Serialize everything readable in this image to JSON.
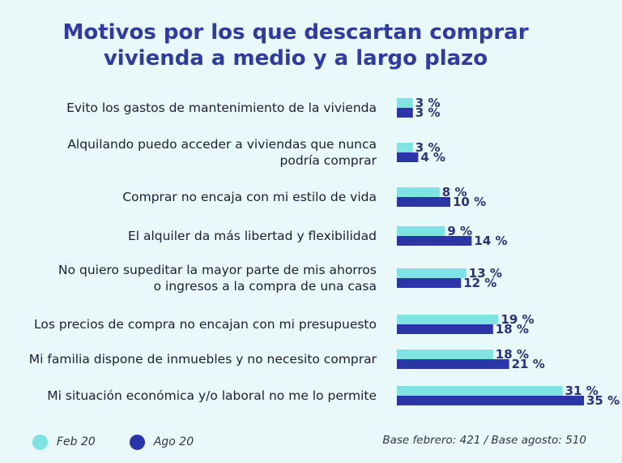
{
  "chart_data": {
    "type": "bar",
    "orientation": "horizontal",
    "title": [
      "Motivos por los que descartan comprar",
      "vivienda a medio y a largo plazo"
    ],
    "categories": [
      [
        "Evito los gastos de mantenimiento de la vivienda"
      ],
      [
        "Alquilando puedo acceder a viviendas que nunca",
        "podría comprar"
      ],
      [
        "Comprar no encaja con mi estilo de vida"
      ],
      [
        "El alquiler da más libertad y flexibilidad"
      ],
      [
        "No quiero supeditar la mayor parte de mis ahorros",
        "o ingresos a la compra de una casa"
      ],
      [
        "Los precios de compra no encajan con mi presupuesto"
      ],
      [
        "Mi familia dispone de inmuebles y no necesito comprar"
      ],
      [
        "Mi situación económica  y/o laboral no me lo permite"
      ]
    ],
    "series": [
      {
        "name": "Feb 20",
        "color": "#7fe3e3",
        "values": [
          3,
          3,
          8,
          9,
          13,
          19,
          18,
          31
        ]
      },
      {
        "name": "Ago 20",
        "color": "#2b35a8",
        "values": [
          3,
          4,
          10,
          14,
          12,
          18,
          21,
          35
        ]
      }
    ],
    "unit_suffix": " %",
    "legend_position": "bottom-left",
    "grid": false,
    "note": "Base febrero: 421 / Base agosto: 510"
  }
}
